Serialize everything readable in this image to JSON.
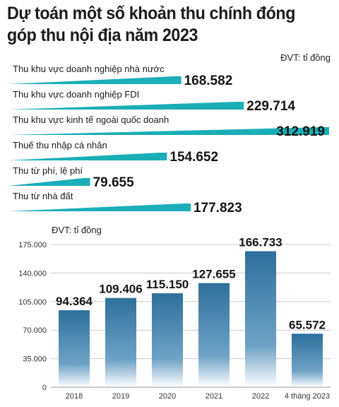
{
  "title": "Dự toán một số khoản thu chính đóng góp thu nội địa năm 2023",
  "colors": {
    "bar_top": "#1aaeb7",
    "bar_bottom": "#2e6f9c",
    "grid": "#cccccc",
    "text": "#1b1b1b"
  },
  "chart_data": [
    {
      "type": "bar",
      "orientation": "horizontal",
      "unit_label": "ĐVT: tỉ đồng",
      "categories": [
        "Thu khu vực doanh nghiệp nhà nước",
        "Thu khu vực doanh nghiệp FDI",
        "Thu khu vực kinh tế ngoài quốc doanh",
        "Thuế thu nhập cá nhân",
        "Thu từ phí, lệ phí",
        "Thu từ nhà đất"
      ],
      "values": [
        168582,
        229714,
        312919,
        154652,
        79655,
        177823
      ],
      "value_labels": [
        "168.582",
        "229.714",
        "312.919",
        "154.652",
        "79.655",
        "177.823"
      ]
    },
    {
      "type": "bar",
      "orientation": "vertical",
      "unit_label": "ĐVT: tỉ đồng",
      "categories": [
        "2018",
        "2019",
        "2020",
        "2021",
        "2022",
        "4 tháng 2023"
      ],
      "values": [
        94364,
        109406,
        115150,
        127655,
        166733,
        65572
      ],
      "value_labels": [
        "94.364",
        "109.406",
        "115.150",
        "127.655",
        "166.733",
        "65.572"
      ],
      "ylim": [
        0,
        175000
      ],
      "yticks": [
        0,
        35000,
        70000,
        105000,
        140000,
        175000
      ],
      "ytick_labels": [
        "0",
        "35.000",
        "70.000",
        "105.000",
        "140.000",
        "175.000"
      ],
      "grid": true
    }
  ]
}
